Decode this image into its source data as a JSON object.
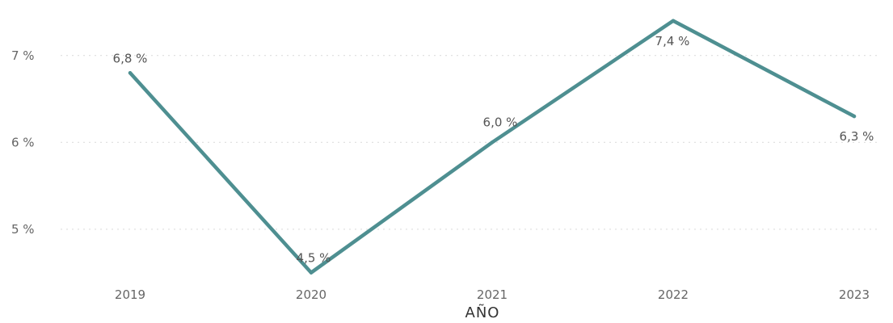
{
  "chart_data": {
    "type": "line",
    "title": "",
    "xlabel": "AÑO",
    "ylabel": "",
    "categories": [
      "2019",
      "2020",
      "2021",
      "2022",
      "2023"
    ],
    "series": [
      {
        "values": [
          6.8,
          4.5,
          6.0,
          7.4,
          6.3
        ],
        "labels": [
          "6,8 %",
          "4,5 %",
          "6,0 %",
          "7,4 %",
          "6,3 %"
        ],
        "color": "#4e8f91"
      }
    ],
    "yticks": [
      {
        "value": 5,
        "label": "5 %"
      },
      {
        "value": 6,
        "label": "6 %"
      },
      {
        "value": 7,
        "label": "7 %"
      }
    ],
    "ylim": [
      4.45,
      7.5
    ],
    "grid": true,
    "legend": "none"
  }
}
